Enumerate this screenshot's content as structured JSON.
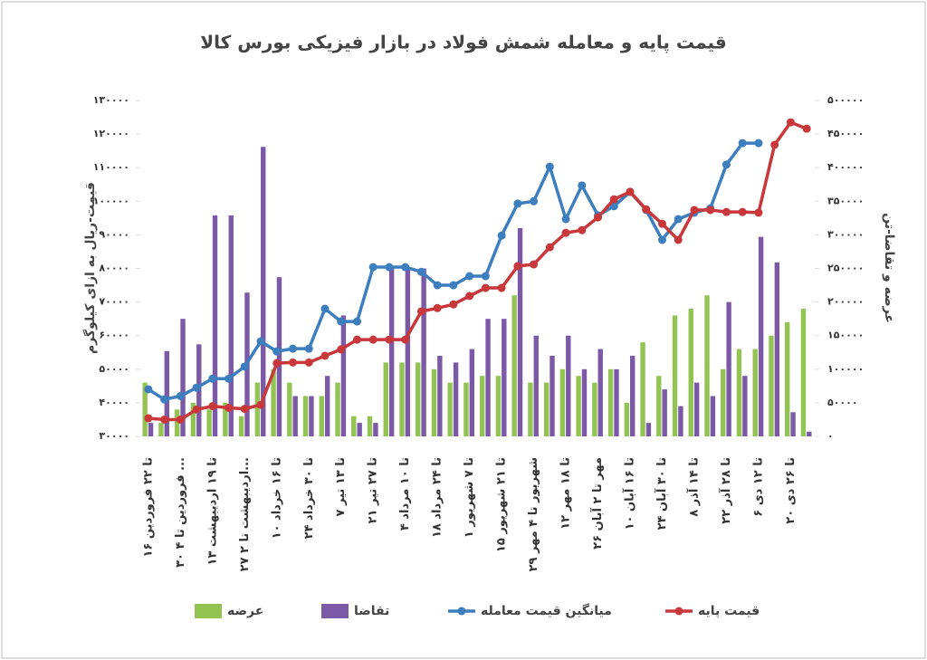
{
  "chart_data": {
    "type": "combo",
    "title": "قیمت پایه و معامله شمش فولاد در بازار فیزیکی بورس کالا",
    "y_label": "قیمت-ریال به ازای کیلوگرم",
    "y2_label": "عرضه و تقاضا-تن",
    "categories": [
      "۱۶ تا ۲۲ فروردین",
      null,
      "۳۰ فروردین تا ۴ ...",
      null,
      "۱۳ تا ۱۹ اردیبهشت",
      null,
      "۲۷ اردیبهشت تا ۲...",
      null,
      "۱۰ تا ۱۶ خرداد",
      null,
      "۲۴ تا ۳۰ خرداد",
      null,
      "۷ تا ۱۳ تیر",
      null,
      "۲۱ تا ۲۷ تیر",
      null,
      "۴ تا ۱۰ مرداد",
      null,
      "۱۸ تا ۲۴ مرداد",
      null,
      "۱ تا ۷ شهریور",
      null,
      "۱۵ تا ۲۱ شهریور",
      null,
      "۲۹ شهریور تا ۴ مهر",
      null,
      "۱۲ تا ۱۸ مهر",
      null,
      "۲۶ مهر تا ۲ آبان",
      null,
      "۱۰ تا ۱۶ آبان",
      null,
      "۲۴ تا ۳۰ آبان",
      null,
      "۸ تا ۱۴ آذر",
      null,
      "۲۲ تا ۲۸ آذر",
      null,
      "۶ تا ۱۲ دی",
      null,
      "۲۰ تا ۲۶ دی",
      null
    ],
    "series": [
      {
        "name": "عرضه",
        "kind": "bar",
        "axis": "y2",
        "color": "#92c353",
        "values": [
          80000,
          20000,
          40000,
          50000,
          40000,
          50000,
          30000,
          80000,
          100000,
          80000,
          60000,
          60000,
          80000,
          30000,
          30000,
          110000,
          110000,
          110000,
          100000,
          80000,
          80000,
          90000,
          90000,
          210000,
          80000,
          80000,
          100000,
          90000,
          80000,
          100000,
          50000,
          140000,
          90000,
          180000,
          190000,
          210000,
          100000,
          130000,
          130000,
          150000,
          170000,
          190000
        ]
      },
      {
        "name": "تقاضا",
        "kind": "bar",
        "axis": "y2",
        "color": "#7b59a6",
        "values": [
          20000,
          127000,
          175000,
          137000,
          329000,
          329000,
          214000,
          431000,
          237000,
          60000,
          60000,
          90000,
          180000,
          20000,
          20000,
          250000,
          250000,
          250000,
          120000,
          110000,
          130000,
          175000,
          175000,
          310000,
          150000,
          120000,
          150000,
          100000,
          130000,
          100000,
          120000,
          20000,
          70000,
          45000,
          80000,
          60000,
          200000,
          90000,
          297000,
          259000,
          36000,
          7000
        ]
      },
      {
        "name": "میانگین قیمت معامله",
        "kind": "line",
        "color": "#3d7ebf",
        "values": [
          44000,
          41000,
          42000,
          44500,
          47200,
          47200,
          50800,
          58300,
          55300,
          56100,
          56100,
          68000,
          64200,
          64200,
          80400,
          80400,
          80400,
          79000,
          75000,
          75000,
          77700,
          77700,
          89800,
          99300,
          100000,
          110300,
          94700,
          104700,
          95800,
          98500,
          102800,
          97400,
          88500,
          94700,
          96600,
          97900,
          110900,
          117300,
          117300,
          null,
          null,
          null
        ]
      },
      {
        "name": "قیمت پایه",
        "kind": "line",
        "color": "#c8373a",
        "values": [
          35400,
          35000,
          35000,
          38000,
          39000,
          38500,
          38200,
          39400,
          51800,
          52000,
          52000,
          54000,
          55900,
          58800,
          58800,
          58800,
          58800,
          67200,
          68200,
          69300,
          71800,
          74200,
          74200,
          80700,
          81200,
          86300,
          90600,
          91400,
          95200,
          100600,
          102800,
          97600,
          93300,
          88500,
          97400,
          97400,
          96800,
          96800,
          96600,
          116800,
          123500,
          121600
        ]
      }
    ],
    "ylim": [
      30000,
      130000
    ],
    "yticks": [
      {
        "value": 30000,
        "label": "۳۰۰۰۰"
      },
      {
        "value": 40000,
        "label": "۴۰۰۰۰"
      },
      {
        "value": 50000,
        "label": "۵۰۰۰۰"
      },
      {
        "value": 60000,
        "label": "۶۰۰۰۰"
      },
      {
        "value": 70000,
        "label": "۷۰۰۰۰"
      },
      {
        "value": 80000,
        "label": "۸۰۰۰۰"
      },
      {
        "value": 90000,
        "label": "۹۰۰۰۰"
      },
      {
        "value": 100000,
        "label": "۱۰۰۰۰۰"
      },
      {
        "value": 110000,
        "label": "۱۱۰۰۰۰"
      },
      {
        "value": 120000,
        "label": "۱۲۰۰۰۰"
      },
      {
        "value": 130000,
        "label": "۱۳۰۰۰۰"
      }
    ],
    "y2lim": [
      0,
      500000
    ],
    "y2ticks": [
      {
        "value": 0,
        "label": "۰"
      },
      {
        "value": 50000,
        "label": "۵۰۰۰۰"
      },
      {
        "value": 100000,
        "label": "۱۰۰۰۰۰"
      },
      {
        "value": 150000,
        "label": "۱۵۰۰۰۰"
      },
      {
        "value": 200000,
        "label": "۲۰۰۰۰۰"
      },
      {
        "value": 250000,
        "label": "۲۵۰۰۰۰"
      },
      {
        "value": 300000,
        "label": "۳۰۰۰۰۰"
      },
      {
        "value": 350000,
        "label": "۳۵۰۰۰۰"
      },
      {
        "value": 400000,
        "label": "۴۰۰۰۰۰"
      },
      {
        "value": 450000,
        "label": "۴۵۰۰۰۰"
      },
      {
        "value": 500000,
        "label": "۵۰۰۰۰۰"
      }
    ],
    "grid": false,
    "legend": "bottom"
  }
}
